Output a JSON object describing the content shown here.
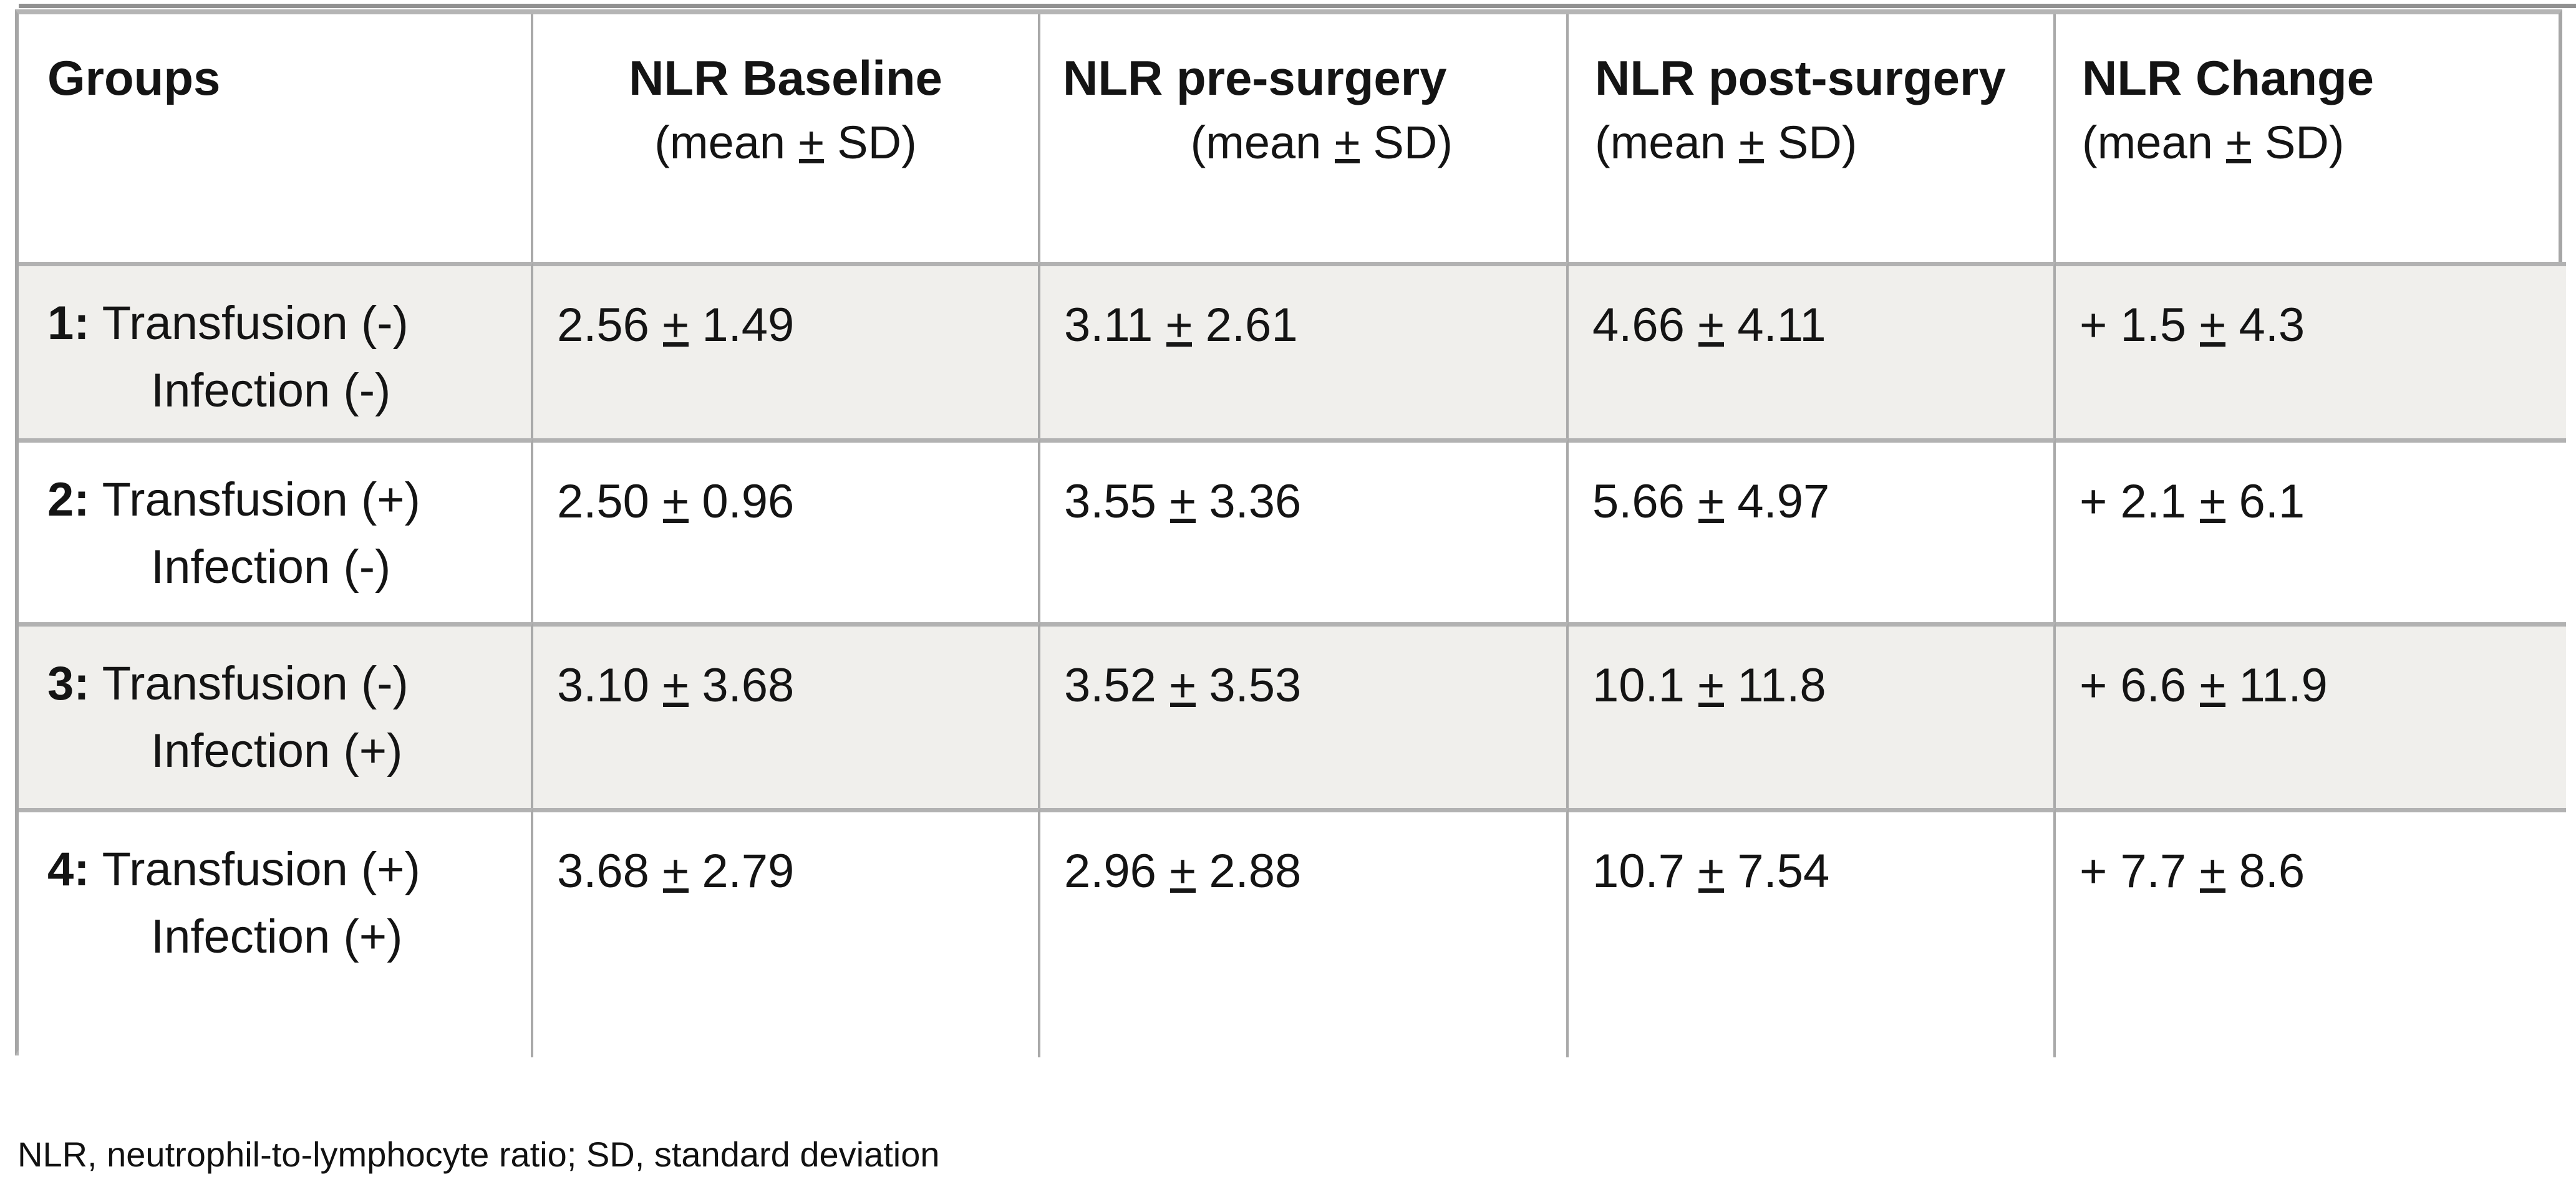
{
  "symbols": {
    "plus_minus": "+"
  },
  "header": {
    "col1": "Groups",
    "col2": "NLR Baseline",
    "col3": "NLR pre-surgery",
    "col4": "NLR post-surgery",
    "col5": "NLR Change",
    "subtitle_prefix": "(mean",
    "subtitle_suffix": "SD)"
  },
  "rows": [
    {
      "num": "1:",
      "cond1": "Transfusion (-)",
      "cond2": "Infection (-)",
      "baseline_mean": "2.56",
      "baseline_sd": "1.49",
      "pre_mean": "3.11",
      "pre_sd": "2.61",
      "post_mean": "4.66",
      "post_sd": "4.11",
      "change_mean": "+ 1.5",
      "change_sd": "4.3"
    },
    {
      "num": "2:",
      "cond1": "Transfusion (+)",
      "cond2": "Infection (-)",
      "baseline_mean": "2.50",
      "baseline_sd": "0.96",
      "pre_mean": "3.55",
      "pre_sd": "3.36",
      "post_mean": "5.66",
      "post_sd": "4.97",
      "change_mean": "+ 2.1",
      "change_sd": "6.1"
    },
    {
      "num": "3:",
      "cond1": "Transfusion (-)",
      "cond2": "Infection (+)",
      "baseline_mean": "3.10",
      "baseline_sd": "3.68",
      "pre_mean": "3.52",
      "pre_sd": "3.53",
      "post_mean": "10.1",
      "post_sd": "11.8",
      "change_mean": "+ 6.6",
      "change_sd": "11.9"
    },
    {
      "num": "4:",
      "cond1": "Transfusion (+)",
      "cond2": "Infection (+)",
      "baseline_mean": "3.68",
      "baseline_sd": "2.79",
      "pre_mean": "2.96",
      "pre_sd": "2.88",
      "post_mean": "10.7",
      "post_sd": "7.54",
      "change_mean": "+ 7.7",
      "change_sd": "8.6"
    }
  ],
  "footnote": "NLR, neutrophil-to-lymphocyte ratio; SD, standard deviation"
}
